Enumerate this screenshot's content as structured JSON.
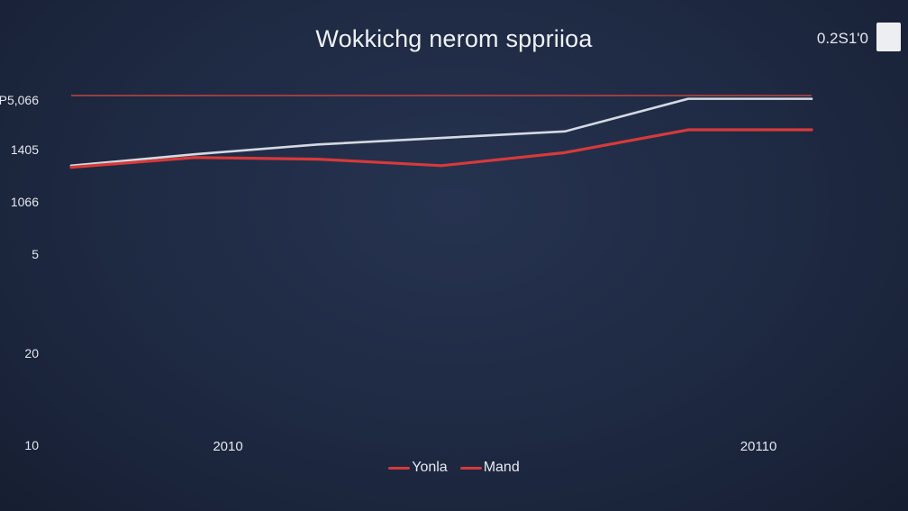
{
  "title": "Wokkichg nerom sppriioa",
  "corner": {
    "value_text": "0.2S1'0"
  },
  "colors": {
    "reference": "#c0463f",
    "series_a": "#d4d9e2",
    "series_b": "#d63a3a"
  },
  "chart_data": {
    "type": "line",
    "title": "Wokkichg nerom sppriioa",
    "y_tick_labels": [
      "P5,066",
      "1405",
      "1066",
      "5",
      "20",
      "10"
    ],
    "x_tick_labels": [
      "2010",
      "20110"
    ],
    "reference_line": {
      "y": 100
    },
    "x": [
      0,
      1,
      2,
      3,
      4,
      5,
      6
    ],
    "ylim": [
      0,
      100
    ],
    "series": [
      {
        "name": "Yonla",
        "color_key": "series_a",
        "x": [
          0,
          1,
          2,
          3,
          4,
          5,
          6
        ],
        "values": [
          57,
          64,
          70,
          74,
          78,
          98,
          98
        ]
      },
      {
        "name": "Mand",
        "color_key": "series_b",
        "x": [
          0,
          1,
          2,
          3,
          4,
          5,
          6
        ],
        "values": [
          56,
          62,
          61,
          57,
          65,
          79,
          79
        ]
      }
    ]
  }
}
